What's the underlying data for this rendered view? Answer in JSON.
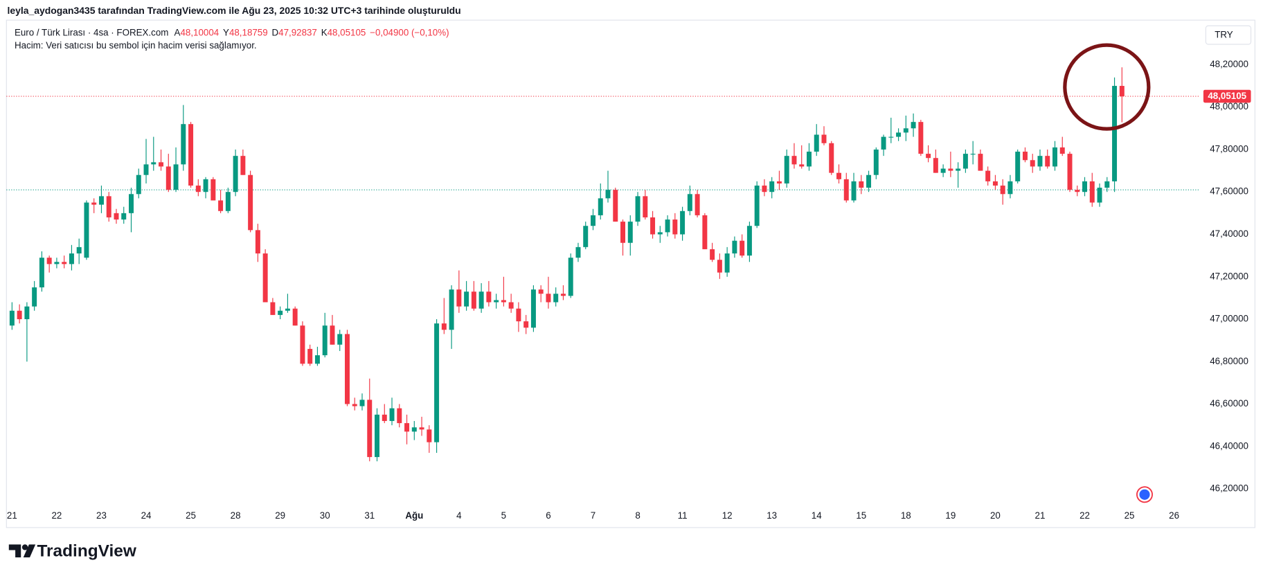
{
  "header": {
    "text": "leyla_aydogan3435 tarafından TradingView.com ile Ağu 23, 2025 10:32 UTC+3 tarihinde oluşturuldu"
  },
  "currency": "TRY",
  "footer": {
    "logo": "TradingView"
  },
  "chart_data": {
    "type": "candlestick",
    "title": "Euro / Türk Lirası · 4sa · FOREX.com",
    "subtitle": "Hacim: Veri satıcısı bu sembol için hacim verisi sağlamıyor.",
    "legend_values": [
      {
        "key": "A",
        "value": 48.10004,
        "label": "48,10004"
      },
      {
        "key": "Y",
        "value": 48.18759,
        "label": "48,18759"
      },
      {
        "key": "D",
        "value": 47.92837,
        "label": "47,92837"
      },
      {
        "key": "K",
        "value": 48.05105,
        "label": "48,05105"
      }
    ],
    "change": {
      "value": -0.049,
      "label": "−0,04900 (−0,10%)"
    },
    "up_color": "#089981",
    "down_color": "#f23645",
    "grid": false,
    "last_price": {
      "value": 48.05105,
      "label": "48,05105"
    },
    "prev_close_line": 47.61,
    "xlim": [
      -0.75,
      159.5
    ],
    "ylim": [
      46.12,
      48.41
    ],
    "yticks": [
      {
        "value": 46.2,
        "label": "46,20000"
      },
      {
        "value": 46.4,
        "label": "46,40000"
      },
      {
        "value": 46.6,
        "label": "46,60000"
      },
      {
        "value": 46.8,
        "label": "46,80000"
      },
      {
        "value": 47.0,
        "label": "47,00000"
      },
      {
        "value": 47.2,
        "label": "47,20000"
      },
      {
        "value": 47.4,
        "label": "47,40000"
      },
      {
        "value": 47.6,
        "label": "47,60000"
      },
      {
        "value": 47.8,
        "label": "47,80000"
      },
      {
        "value": 48.0,
        "label": "48,00000"
      },
      {
        "value": 48.2,
        "label": "48,20000"
      }
    ],
    "xticks": [
      {
        "value": 0,
        "label": "21"
      },
      {
        "value": 6,
        "label": "22"
      },
      {
        "value": 12,
        "label": "23"
      },
      {
        "value": 18,
        "label": "24"
      },
      {
        "value": 24,
        "label": "25"
      },
      {
        "value": 30,
        "label": "28"
      },
      {
        "value": 36,
        "label": "29"
      },
      {
        "value": 42,
        "label": "30"
      },
      {
        "value": 48,
        "label": "31"
      },
      {
        "value": 54,
        "label": "Ağu",
        "bold": true
      },
      {
        "value": 60,
        "label": "4"
      },
      {
        "value": 66,
        "label": "5"
      },
      {
        "value": 72,
        "label": "6"
      },
      {
        "value": 78,
        "label": "7"
      },
      {
        "value": 84,
        "label": "8"
      },
      {
        "value": 90,
        "label": "11"
      },
      {
        "value": 96,
        "label": "12"
      },
      {
        "value": 102,
        "label": "13"
      },
      {
        "value": 108,
        "label": "14"
      },
      {
        "value": 114,
        "label": "15"
      },
      {
        "value": 120,
        "label": "18"
      },
      {
        "value": 126,
        "label": "19"
      },
      {
        "value": 132,
        "label": "20"
      },
      {
        "value": 138,
        "label": "21"
      },
      {
        "value": 144,
        "label": "22"
      },
      {
        "value": 150,
        "label": "25"
      },
      {
        "value": 156,
        "label": "26"
      }
    ],
    "x": [
      0,
      1,
      2,
      3,
      4,
      5,
      6,
      7,
      8,
      9,
      10,
      11,
      12,
      13,
      14,
      15,
      16,
      17,
      18,
      19,
      20,
      21,
      22,
      23,
      24,
      25,
      26,
      27,
      28,
      29,
      30,
      31,
      32,
      33,
      34,
      35,
      36,
      37,
      38,
      39,
      40,
      41,
      42,
      43,
      44,
      45,
      46,
      47,
      48,
      49,
      50,
      51,
      52,
      53,
      54,
      55,
      56,
      57,
      58,
      59,
      60,
      61,
      62,
      63,
      64,
      65,
      66,
      67,
      68,
      69,
      70,
      71,
      72,
      73,
      74,
      75,
      76,
      77,
      78,
      79,
      80,
      81,
      82,
      83,
      84,
      85,
      86,
      87,
      88,
      89,
      90,
      91,
      92,
      93,
      94,
      95,
      96,
      97,
      98,
      99,
      100,
      101,
      102,
      103,
      104,
      105,
      106,
      107,
      108,
      109,
      110,
      111,
      112,
      113,
      114,
      115,
      116,
      117,
      118,
      119,
      120,
      121,
      122,
      123,
      124,
      125,
      126,
      127,
      128,
      129,
      130,
      131,
      132,
      133,
      134,
      135,
      136,
      137,
      138,
      139,
      140,
      141,
      142,
      143,
      144,
      145,
      146,
      147,
      148,
      149
    ],
    "candles": [
      [
        46.97,
        47.08,
        46.95,
        47.04
      ],
      [
        47.04,
        47.07,
        46.98,
        47.0
      ],
      [
        47.0,
        47.08,
        46.8,
        47.06
      ],
      [
        47.06,
        47.18,
        47.04,
        47.15
      ],
      [
        47.15,
        47.32,
        47.13,
        47.29
      ],
      [
        47.29,
        47.3,
        47.22,
        47.26
      ],
      [
        47.26,
        47.29,
        47.24,
        47.27
      ],
      [
        47.27,
        47.3,
        47.24,
        47.26
      ],
      [
        47.26,
        47.35,
        47.23,
        47.31
      ],
      [
        47.31,
        47.38,
        47.26,
        47.34
      ],
      [
        47.29,
        47.56,
        47.28,
        47.55
      ],
      [
        47.55,
        47.57,
        47.5,
        47.54
      ],
      [
        47.54,
        47.63,
        47.5,
        47.58
      ],
      [
        47.58,
        47.6,
        47.46,
        47.48
      ],
      [
        47.5,
        47.52,
        47.45,
        47.47
      ],
      [
        47.47,
        47.53,
        47.45,
        47.5
      ],
      [
        47.5,
        47.62,
        47.41,
        47.59
      ],
      [
        47.59,
        47.71,
        47.57,
        47.68
      ],
      [
        47.68,
        47.85,
        47.64,
        47.73
      ],
      [
        47.73,
        47.86,
        47.7,
        47.74
      ],
      [
        47.74,
        47.8,
        47.7,
        47.72
      ],
      [
        47.72,
        47.78,
        47.6,
        47.61
      ],
      [
        47.61,
        47.81,
        47.6,
        47.73
      ],
      [
        47.73,
        48.01,
        47.7,
        47.92
      ],
      [
        47.92,
        47.93,
        47.62,
        47.63
      ],
      [
        47.63,
        47.66,
        47.58,
        47.6
      ],
      [
        47.6,
        47.67,
        47.57,
        47.66
      ],
      [
        47.66,
        47.67,
        47.56,
        47.56
      ],
      [
        47.56,
        47.61,
        47.5,
        47.51
      ],
      [
        47.51,
        47.62,
        47.5,
        47.6
      ],
      [
        47.6,
        47.8,
        47.58,
        47.77
      ],
      [
        47.77,
        47.8,
        47.68,
        47.68
      ],
      [
        47.68,
        47.7,
        47.41,
        47.42
      ],
      [
        47.42,
        47.45,
        47.27,
        47.31
      ],
      [
        47.31,
        47.33,
        47.08,
        47.08
      ],
      [
        47.08,
        47.1,
        47.02,
        47.02
      ],
      [
        47.02,
        47.06,
        47.0,
        47.04
      ],
      [
        47.04,
        47.12,
        47.03,
        47.05
      ],
      [
        47.05,
        47.06,
        46.97,
        46.97
      ],
      [
        46.97,
        46.99,
        46.78,
        46.79
      ],
      [
        46.86,
        46.88,
        46.78,
        46.79
      ],
      [
        46.79,
        46.87,
        46.78,
        46.83
      ],
      [
        46.83,
        47.03,
        46.82,
        46.97
      ],
      [
        46.97,
        47.02,
        46.88,
        46.88
      ],
      [
        46.88,
        46.95,
        46.85,
        46.93
      ],
      [
        46.93,
        46.95,
        46.59,
        46.6
      ],
      [
        46.6,
        46.63,
        46.57,
        46.59
      ],
      [
        46.59,
        46.65,
        46.57,
        46.62
      ],
      [
        46.62,
        46.72,
        46.33,
        46.35
      ],
      [
        46.35,
        46.58,
        46.33,
        46.55
      ],
      [
        46.55,
        46.6,
        46.51,
        46.52
      ],
      [
        46.52,
        46.63,
        46.5,
        46.58
      ],
      [
        46.58,
        46.6,
        46.49,
        46.51
      ],
      [
        46.51,
        46.55,
        46.41,
        46.47
      ],
      [
        46.47,
        46.52,
        46.43,
        46.49
      ],
      [
        46.49,
        46.54,
        46.45,
        46.48
      ],
      [
        46.48,
        46.5,
        46.37,
        46.42
      ],
      [
        46.42,
        47.0,
        46.37,
        46.98
      ],
      [
        46.98,
        47.1,
        46.93,
        46.95
      ],
      [
        46.95,
        47.16,
        46.86,
        47.14
      ],
      [
        47.14,
        47.23,
        47.03,
        47.06
      ],
      [
        47.06,
        47.18,
        47.04,
        47.13
      ],
      [
        47.13,
        47.18,
        47.04,
        47.05
      ],
      [
        47.05,
        47.17,
        47.03,
        47.13
      ],
      [
        47.13,
        47.18,
        47.06,
        47.08
      ],
      [
        47.08,
        47.12,
        47.05,
        47.09
      ],
      [
        47.09,
        47.2,
        47.06,
        47.08
      ],
      [
        47.08,
        47.12,
        47.03,
        47.05
      ],
      [
        47.05,
        47.08,
        46.94,
        46.99
      ],
      [
        46.99,
        47.02,
        46.93,
        46.96
      ],
      [
        46.96,
        47.16,
        46.94,
        47.14
      ],
      [
        47.14,
        47.16,
        47.08,
        47.12
      ],
      [
        47.12,
        47.2,
        47.05,
        47.08
      ],
      [
        47.08,
        47.15,
        47.06,
        47.12
      ],
      [
        47.12,
        47.16,
        47.09,
        47.11
      ],
      [
        47.11,
        47.31,
        47.1,
        47.29
      ],
      [
        47.29,
        47.36,
        47.27,
        47.34
      ],
      [
        47.34,
        47.46,
        47.33,
        47.44
      ],
      [
        47.44,
        47.52,
        47.42,
        47.49
      ],
      [
        47.49,
        47.64,
        47.47,
        47.57
      ],
      [
        47.57,
        47.7,
        47.55,
        47.61
      ],
      [
        47.61,
        47.62,
        47.46,
        47.46
      ],
      [
        47.46,
        47.47,
        47.3,
        47.36
      ],
      [
        47.36,
        47.49,
        47.3,
        47.46
      ],
      [
        47.46,
        47.6,
        47.44,
        47.58
      ],
      [
        47.58,
        47.61,
        47.47,
        47.48
      ],
      [
        47.48,
        47.51,
        47.38,
        47.4
      ],
      [
        47.4,
        47.44,
        47.36,
        47.41
      ],
      [
        47.41,
        47.49,
        47.39,
        47.47
      ],
      [
        47.47,
        47.5,
        47.38,
        47.4
      ],
      [
        47.4,
        47.53,
        47.37,
        47.51
      ],
      [
        47.51,
        47.63,
        47.49,
        47.59
      ],
      [
        47.59,
        47.61,
        47.48,
        47.49
      ],
      [
        47.49,
        47.5,
        47.33,
        47.33
      ],
      [
        47.33,
        47.36,
        47.27,
        47.28
      ],
      [
        47.28,
        47.31,
        47.19,
        47.22
      ],
      [
        47.22,
        47.34,
        47.2,
        47.31
      ],
      [
        47.31,
        47.39,
        47.29,
        47.37
      ],
      [
        47.37,
        47.4,
        47.29,
        47.3
      ],
      [
        47.3,
        47.46,
        47.27,
        47.44
      ],
      [
        47.44,
        47.65,
        47.43,
        47.63
      ],
      [
        47.63,
        47.66,
        47.58,
        47.6
      ],
      [
        47.6,
        47.67,
        47.57,
        47.65
      ],
      [
        47.65,
        47.7,
        47.61,
        47.64
      ],
      [
        47.64,
        47.8,
        47.62,
        47.77
      ],
      [
        47.77,
        47.83,
        47.71,
        47.73
      ],
      [
        47.73,
        47.82,
        47.71,
        47.72
      ],
      [
        47.72,
        47.83,
        47.7,
        47.79
      ],
      [
        47.79,
        47.92,
        47.77,
        47.87
      ],
      [
        47.87,
        47.91,
        47.82,
        47.83
      ],
      [
        47.83,
        47.84,
        47.68,
        47.69
      ],
      [
        47.69,
        47.73,
        47.64,
        47.66
      ],
      [
        47.66,
        47.69,
        47.55,
        47.56
      ],
      [
        47.56,
        47.69,
        47.55,
        47.65
      ],
      [
        47.65,
        47.68,
        47.59,
        47.62
      ],
      [
        47.62,
        47.7,
        47.6,
        47.68
      ],
      [
        47.68,
        47.81,
        47.66,
        47.8
      ],
      [
        47.8,
        47.87,
        47.77,
        47.86
      ],
      [
        47.86,
        47.95,
        47.83,
        47.86
      ],
      [
        47.86,
        47.9,
        47.84,
        47.88
      ],
      [
        47.88,
        47.96,
        47.84,
        47.9
      ],
      [
        47.9,
        47.97,
        47.86,
        47.93
      ],
      [
        47.93,
        47.94,
        47.77,
        47.78
      ],
      [
        47.78,
        47.82,
        47.74,
        47.76
      ],
      [
        47.76,
        47.8,
        47.69,
        47.69
      ],
      [
        47.69,
        47.73,
        47.67,
        47.71
      ],
      [
        47.71,
        47.79,
        47.67,
        47.7
      ],
      [
        47.7,
        47.74,
        47.62,
        47.71
      ],
      [
        47.71,
        47.8,
        47.69,
        47.78
      ],
      [
        47.78,
        47.84,
        47.73,
        47.78
      ],
      [
        47.78,
        47.8,
        47.7,
        47.7
      ],
      [
        47.7,
        47.72,
        47.63,
        47.65
      ],
      [
        47.65,
        47.68,
        47.61,
        47.63
      ],
      [
        47.63,
        47.66,
        47.54,
        47.59
      ],
      [
        47.59,
        47.68,
        47.57,
        47.65
      ],
      [
        47.65,
        47.8,
        47.64,
        47.79
      ],
      [
        47.79,
        47.81,
        47.74,
        47.75
      ],
      [
        47.75,
        47.78,
        47.69,
        47.72
      ],
      [
        47.72,
        47.8,
        47.7,
        47.77
      ],
      [
        47.77,
        47.8,
        47.71,
        47.72
      ],
      [
        47.72,
        47.84,
        47.7,
        47.81
      ],
      [
        47.81,
        47.86,
        47.77,
        47.78
      ],
      [
        47.78,
        47.79,
        47.6,
        47.61
      ],
      [
        47.61,
        47.63,
        47.58,
        47.6
      ],
      [
        47.6,
        47.67,
        47.58,
        47.65
      ],
      [
        47.65,
        47.69,
        47.53,
        47.55
      ],
      [
        47.55,
        47.64,
        47.53,
        47.62
      ],
      [
        47.62,
        47.67,
        47.6,
        47.65
      ],
      [
        47.65,
        48.14,
        47.6,
        48.10004
      ],
      [
        48.10004,
        48.18759,
        47.92837,
        48.05105
      ]
    ]
  }
}
